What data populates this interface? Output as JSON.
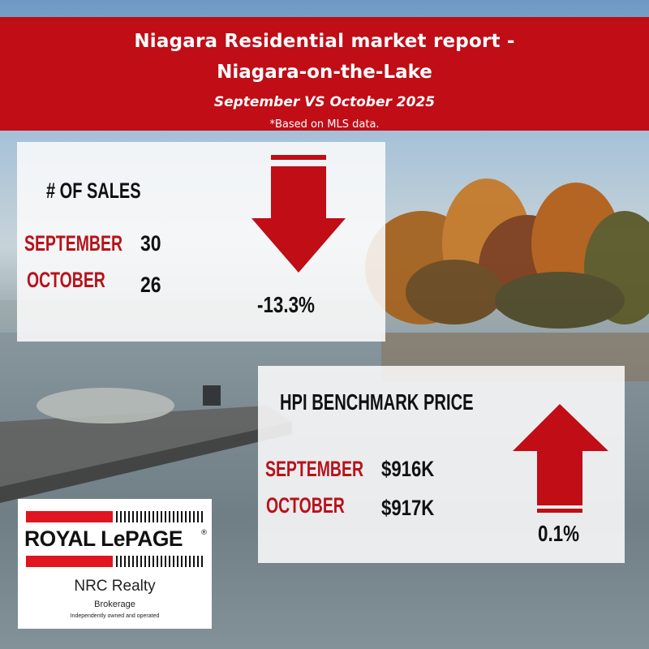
{
  "header": {
    "title_line1": "Niagara Residential market report -",
    "title_line2": "Niagara-on-the-Lake",
    "subtitle": "September VS October 2025",
    "note": "*Based on MLS data."
  },
  "sales": {
    "title": "# OF SALES",
    "rows": [
      {
        "month": "SEPTEMBER",
        "value": "30"
      },
      {
        "month": "OCTOBER",
        "value": "26"
      }
    ],
    "change": "-13.3%",
    "direction": "down"
  },
  "hpi": {
    "title": "HPI BENCHMARK PRICE",
    "rows": [
      {
        "month": "SEPTEMBER",
        "value": "$916K"
      },
      {
        "month": "OCTOBER",
        "value": "$917K"
      }
    ],
    "change": "0.1%",
    "direction": "up"
  },
  "logo": {
    "brand": "ROYAL LePAGE",
    "registered": "®",
    "company": "NRC Realty",
    "type": "Brokerage",
    "tagline": "Independently owned and operated"
  },
  "colors": {
    "banner": "#c00d16",
    "accent": "#b8121a",
    "arrow": "#c00d16"
  },
  "icons": {
    "sales_arrow": "arrow-down-icon",
    "hpi_arrow": "arrow-up-icon"
  }
}
